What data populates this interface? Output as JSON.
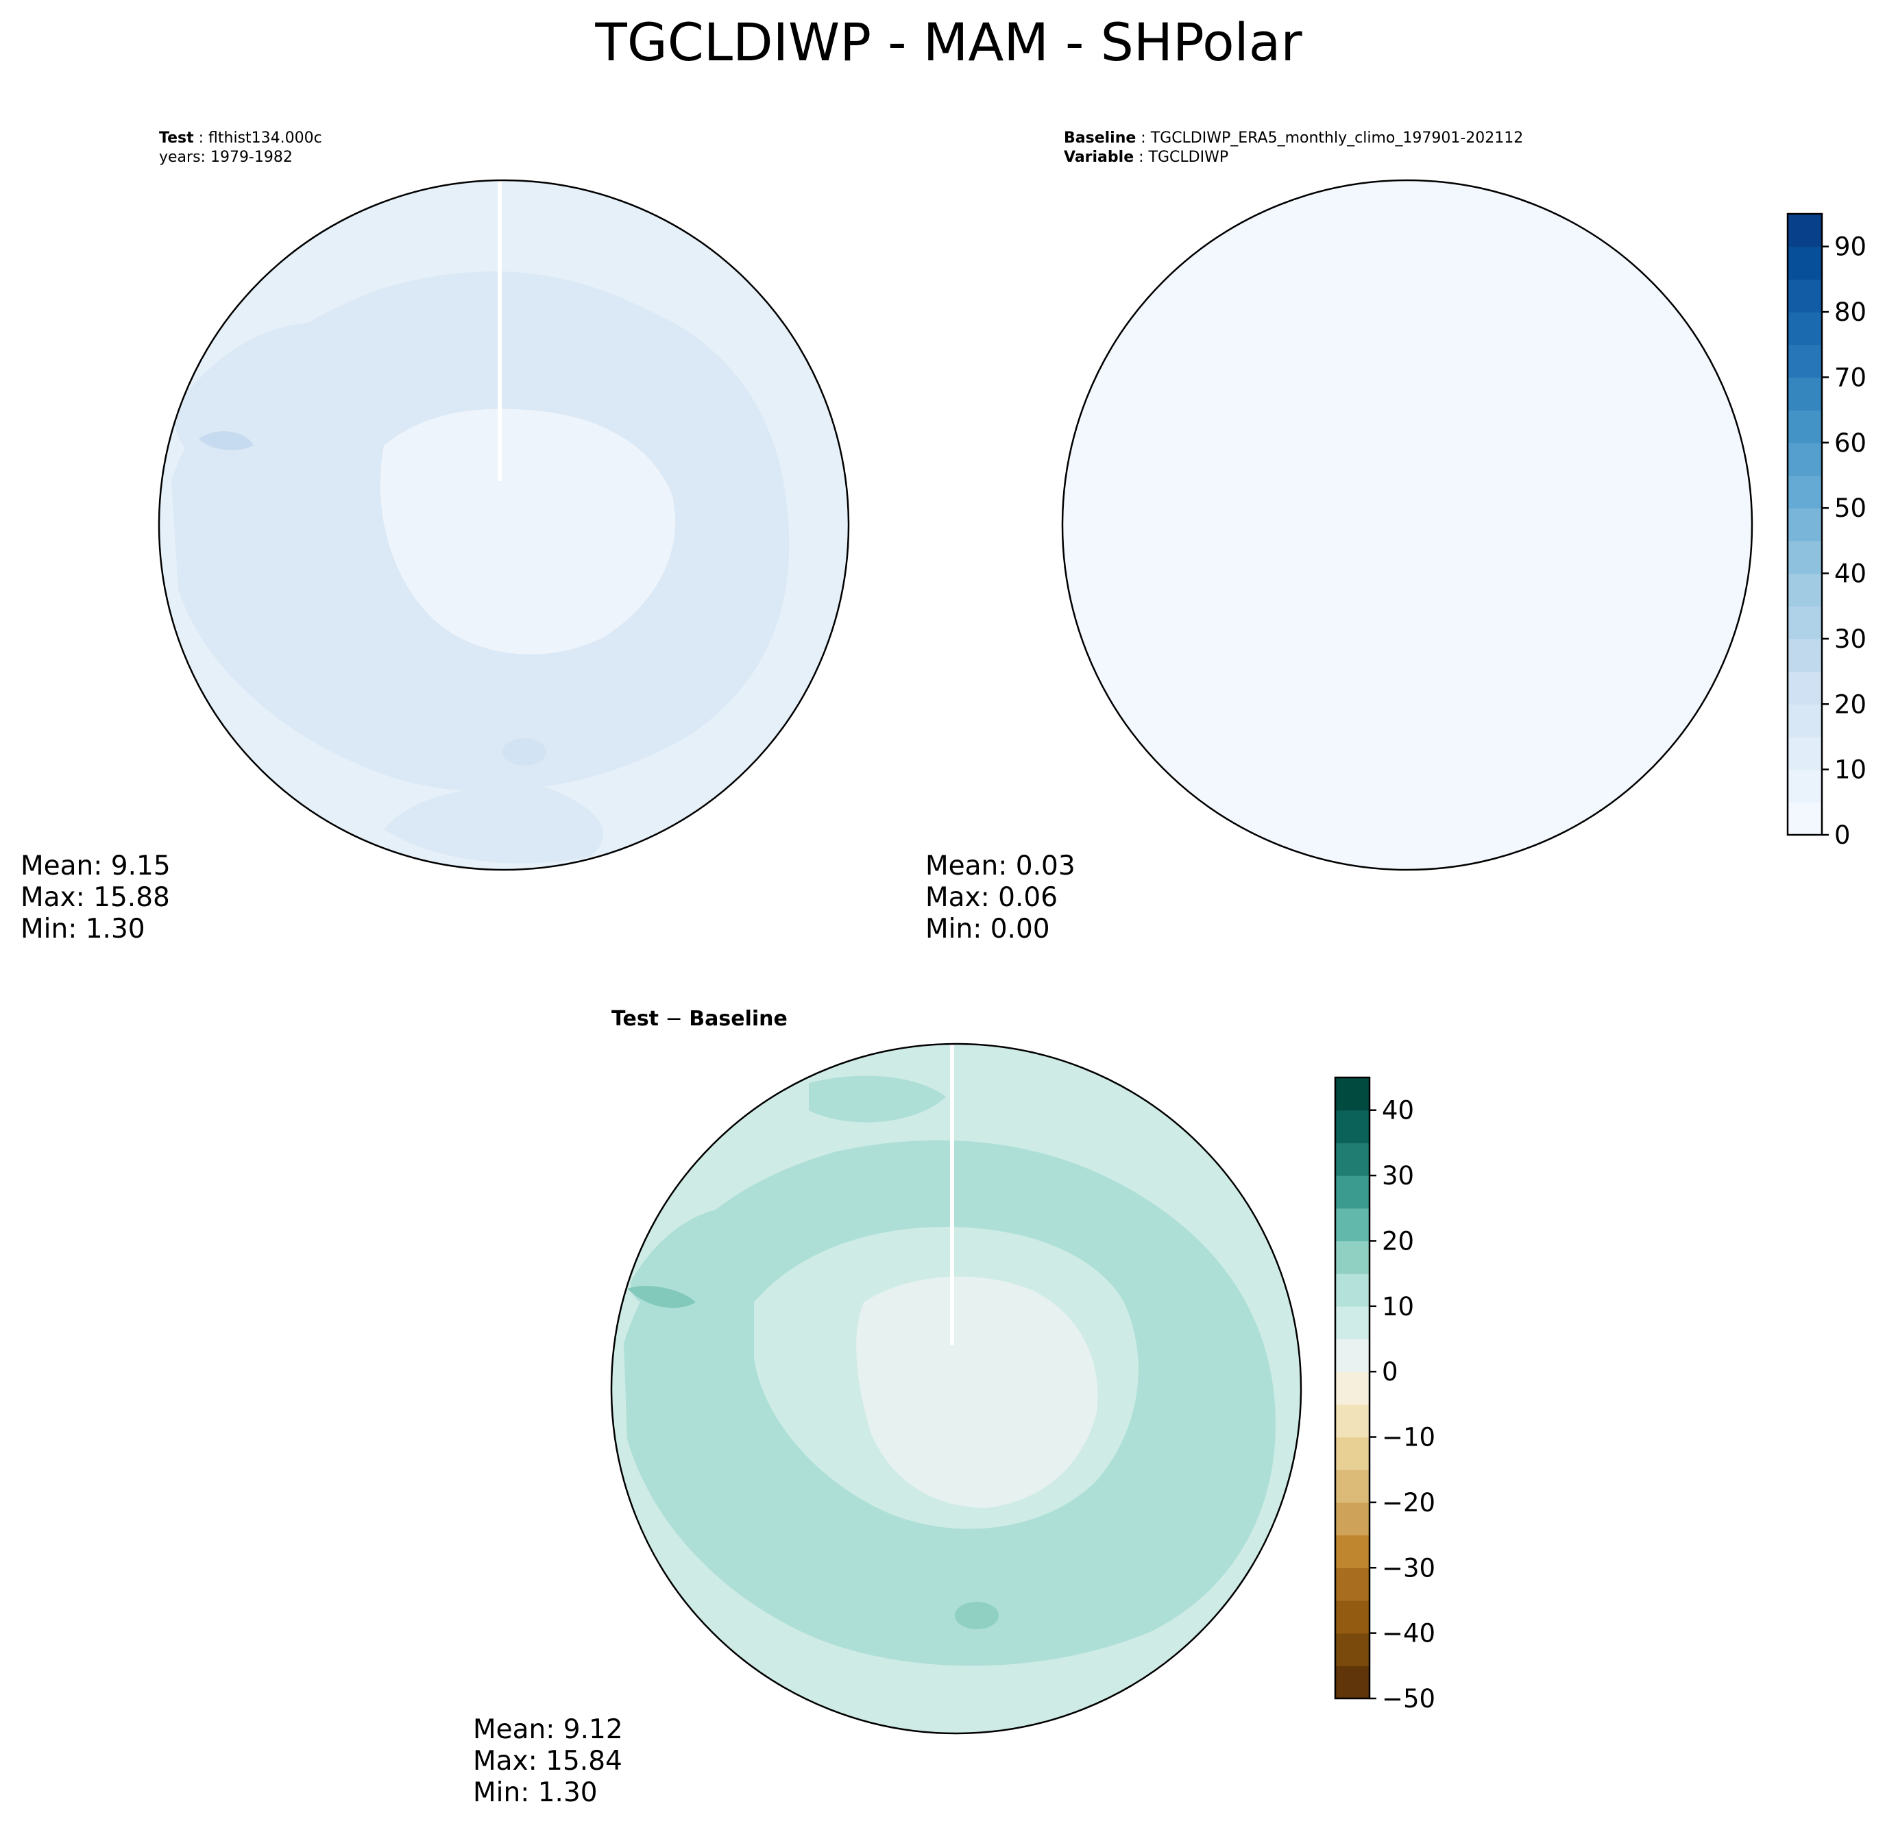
{
  "figure": {
    "title": "TGCLDIWP - MAM - SHPolar"
  },
  "panels": {
    "test": {
      "header": {
        "line1_label": "Test",
        "line1_value": "flthist134.000c",
        "line2": "years: 1979-1982"
      },
      "stats": {
        "mean": "Mean:  9.15",
        "max": "Max: 15.88",
        "min": "Min:  1.30"
      }
    },
    "baseline": {
      "header": {
        "line1_label": "Baseline",
        "line1_value": "TGCLDIWP_ERA5_monthly_climo_197901-202112",
        "line2_label": "Variable",
        "line2_value": "TGCLDIWP"
      },
      "stats": {
        "mean": "Mean:  0.03",
        "max": "Max:  0.06",
        "min": "Min:  0.00"
      }
    },
    "diff": {
      "title_a": "Test",
      "title_op": " − ",
      "title_b": "Baseline",
      "stats": {
        "mean": "Mean:  9.12",
        "max": "Max: 15.84",
        "min": "Min:  1.30"
      }
    }
  },
  "chart_data": [
    {
      "type": "heatmap",
      "projection": "south-polar-stereographic",
      "panel": "test",
      "colormap": "Blues",
      "statistics": {
        "mean": 9.15,
        "max": 15.88,
        "min": 1.3
      },
      "colorbar": "shared-with-baseline"
    },
    {
      "type": "heatmap",
      "projection": "south-polar-stereographic",
      "panel": "baseline",
      "colormap": "Blues",
      "statistics": {
        "mean": 0.03,
        "max": 0.06,
        "min": 0.0
      },
      "colorbar": {
        "range": [
          0,
          95
        ],
        "step": 5,
        "ticks": [
          0,
          10,
          20,
          30,
          40,
          50,
          60,
          70,
          80,
          90
        ],
        "tick_labels": [
          "0",
          "10",
          "20",
          "30",
          "40",
          "50",
          "60",
          "70",
          "80",
          "90"
        ],
        "colors": [
          "#f3f8fe",
          "#eaf2fb",
          "#e1edf8",
          "#d8e7f5",
          "#cfe1f2",
          "#c1d9ed",
          "#b0d2e8",
          "#a0cbe2",
          "#8dc1dd",
          "#79b5d9",
          "#65aad4",
          "#549fcd",
          "#4493c7",
          "#3585bf",
          "#2777b8",
          "#1b69af",
          "#115ca5",
          "#084f99",
          "#08418a"
        ]
      }
    },
    {
      "type": "heatmap",
      "projection": "south-polar-stereographic",
      "panel": "diff",
      "colormap": "BrBG",
      "statistics": {
        "mean": 9.12,
        "max": 15.84,
        "min": 1.3
      },
      "colorbar": {
        "range": [
          -50,
          45
        ],
        "step": 5,
        "ticks": [
          -50,
          -40,
          -30,
          -20,
          -10,
          0,
          10,
          20,
          30,
          40
        ],
        "tick_labels": [
          "−50",
          "−40",
          "−30",
          "−20",
          "−10",
          "0",
          "10",
          "20",
          "30",
          "40"
        ],
        "colors": [
          "#603509",
          "#7a4a0c",
          "#935b12",
          "#a86d1f",
          "#bf852f",
          "#cfa25a",
          "#dcba78",
          "#e8cf94",
          "#f2e2b9",
          "#f5efdc",
          "#e9f2f1",
          "#d0ece8",
          "#b4e1da",
          "#8fd0c3",
          "#63b8ac",
          "#3b9b8f",
          "#1f7d72",
          "#0b6258",
          "#004a3f"
        ]
      }
    }
  ]
}
